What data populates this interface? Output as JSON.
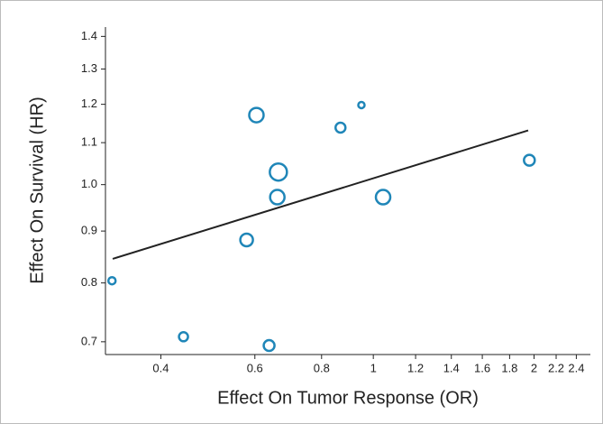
{
  "chart_data": {
    "type": "scatter",
    "xlabel": "Effect On Tumor Response (OR)",
    "ylabel": "Effect On Survival (HR)",
    "xlog": true,
    "ylog": true,
    "xlim": [
      0.315,
      2.55
    ],
    "ylim": [
      0.68,
      1.43
    ],
    "xticks": [
      0.4,
      0.6,
      0.8,
      1,
      1.2,
      1.4,
      1.6,
      1.8,
      2,
      2.2,
      2.4
    ],
    "yticks": [
      0.7,
      0.8,
      0.9,
      {
        "value": 1,
        "label": "1.0"
      },
      1.1,
      1.2,
      1.3,
      1.4
    ],
    "series": [
      {
        "color": "#1f86b8",
        "x": [
          0.324,
          0.441,
          0.638,
          0.579,
          0.604,
          0.664,
          0.661,
          0.868,
          0.95,
          1.043,
          1.96
        ],
        "values": [
          0.804,
          0.708,
          0.694,
          0.882,
          1.171,
          1.029,
          0.972,
          1.138,
          1.198,
          0.972,
          1.057
        ],
        "sizes": [
          4,
          5,
          6,
          7,
          8,
          9.5,
          8,
          5.5,
          3.5,
          8,
          6
        ]
      }
    ],
    "trend_line": {
      "color": "#222222",
      "x": [
        0.325,
        1.95
      ],
      "values": [
        0.845,
        1.131
      ]
    }
  }
}
